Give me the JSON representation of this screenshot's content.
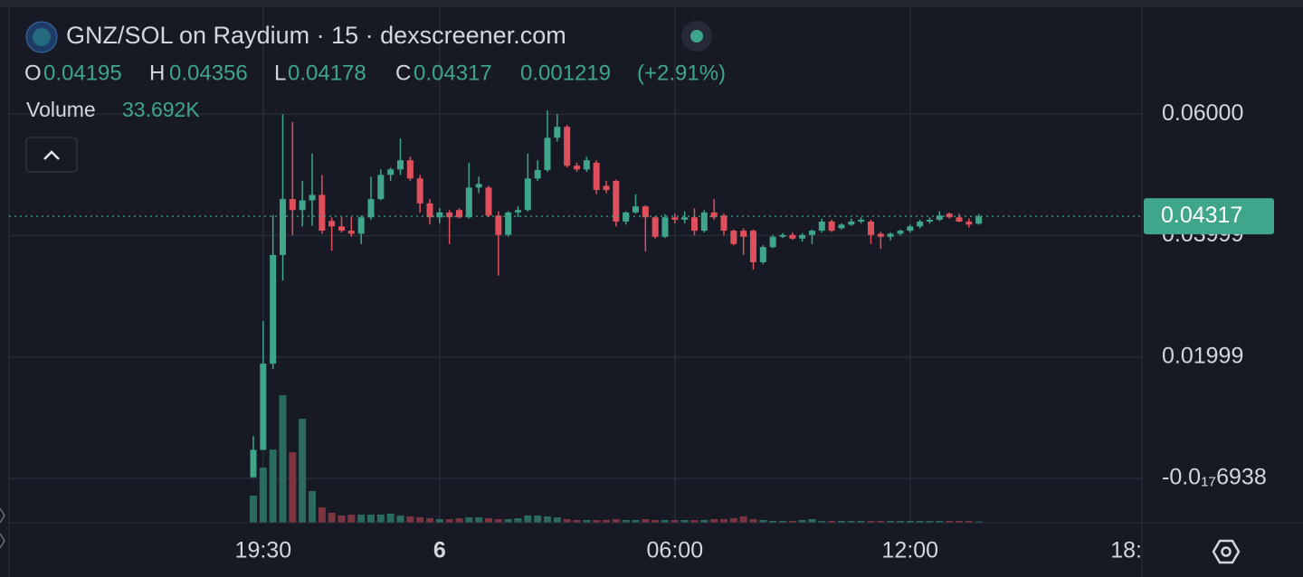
{
  "header": {
    "title": "GNZ/SOL on Raydium · 15 · dexscreener.com",
    "ohlc_labels": [
      "O",
      "H",
      "L",
      "C"
    ],
    "change": 0.001219,
    "change_percent": {
      "value": 2.91,
      "label": "(+2.91%)"
    }
  },
  "chart_data": {
    "type": "candlestick",
    "x": [
      "19:15",
      "19:30",
      "19:45",
      "20:00",
      "20:15",
      "20:30",
      "20:45",
      "21:00",
      "21:15",
      "21:30",
      "21:45",
      "22:00",
      "22:15",
      "22:30",
      "22:45",
      "23:00",
      "23:15",
      "23:30",
      "23:45",
      "00:00",
      "00:15",
      "00:30",
      "00:45",
      "01:00",
      "01:15",
      "01:30",
      "01:45",
      "02:00",
      "02:15",
      "02:30",
      "02:45",
      "03:00",
      "03:15",
      "03:30",
      "03:45",
      "04:00",
      "04:15",
      "04:30",
      "04:45",
      "05:00",
      "05:15",
      "05:30",
      "05:45",
      "06:00",
      "06:15",
      "06:30",
      "06:45",
      "07:00",
      "07:15",
      "07:30",
      "07:45",
      "08:00",
      "08:15",
      "08:30",
      "08:45",
      "09:00",
      "09:15",
      "09:30",
      "09:45",
      "10:00",
      "10:15",
      "10:30",
      "10:45",
      "11:00",
      "11:15",
      "11:30",
      "11:45",
      "12:00",
      "12:15",
      "12:30",
      "12:45",
      "13:00",
      "13:15",
      "13:30",
      "13:45"
    ],
    "open": [
      0.0002,
      0.0047,
      0.0189,
      0.0368,
      0.046,
      0.0442,
      0.0458,
      0.0467,
      0.0424,
      0.0415,
      0.0408,
      0.0403,
      0.043,
      0.046,
      0.05,
      0.0509,
      0.0524,
      0.0494,
      0.0453,
      0.043,
      0.0438,
      0.0442,
      0.043,
      0.0479,
      0.0479,
      0.0433,
      0.0401,
      0.0438,
      0.0442,
      0.0494,
      0.0508,
      0.0561,
      0.0579,
      0.0515,
      0.0509,
      0.052,
      0.0482,
      0.049,
      0.0423,
      0.0438,
      0.0448,
      0.043,
      0.0398,
      0.043,
      0.0426,
      0.043,
      0.0408,
      0.0438,
      0.0433,
      0.0408,
      0.0408,
      0.0408,
      0.0356,
      0.0381,
      0.0398,
      0.0401,
      0.0395,
      0.0401,
      0.0408,
      0.0423,
      0.0412,
      0.0418,
      0.0423,
      0.0423,
      0.0403,
      0.0398,
      0.0403,
      0.0408,
      0.0415,
      0.0423,
      0.0426,
      0.0436,
      0.043,
      0.0423,
      0.04195
    ],
    "high": [
      0.007,
      0.0259,
      0.0434,
      0.06,
      0.0587,
      0.049,
      0.0535,
      0.05,
      0.043,
      0.043,
      0.043,
      0.0433,
      0.0497,
      0.0509,
      0.0512,
      0.056,
      0.053,
      0.05,
      0.046,
      0.0445,
      0.0442,
      0.0445,
      0.052,
      0.0497,
      0.0482,
      0.044,
      0.044,
      0.0448,
      0.0535,
      0.0524,
      0.0606,
      0.06,
      0.0582,
      0.052,
      0.053,
      0.0524,
      0.049,
      0.0492,
      0.044,
      0.0468,
      0.045,
      0.0432,
      0.0435,
      0.0436,
      0.044,
      0.0445,
      0.0442,
      0.046,
      0.0436,
      0.041,
      0.0412,
      0.041,
      0.0384,
      0.0401,
      0.0404,
      0.0405,
      0.0404,
      0.041,
      0.0428,
      0.0426,
      0.042,
      0.0428,
      0.043,
      0.0426,
      0.0406,
      0.0405,
      0.041,
      0.0418,
      0.0426,
      0.043,
      0.044,
      0.0438,
      0.0436,
      0.0428,
      0.04356
    ],
    "low": [
      0.0001,
      0.0047,
      0.018,
      0.0326,
      0.04,
      0.0415,
      0.0416,
      0.0403,
      0.0375,
      0.0405,
      0.0398,
      0.0386,
      0.0426,
      0.0458,
      0.049,
      0.05,
      0.049,
      0.0438,
      0.0418,
      0.042,
      0.0386,
      0.0428,
      0.0428,
      0.047,
      0.043,
      0.0334,
      0.0398,
      0.043,
      0.044,
      0.049,
      0.0505,
      0.0555,
      0.0512,
      0.0505,
      0.0505,
      0.0468,
      0.047,
      0.0415,
      0.0418,
      0.0436,
      0.0374,
      0.0395,
      0.0396,
      0.042,
      0.042,
      0.04,
      0.0405,
      0.0426,
      0.04,
      0.0384,
      0.0368,
      0.0344,
      0.0353,
      0.0379,
      0.0396,
      0.0393,
      0.039,
      0.0386,
      0.0405,
      0.0406,
      0.041,
      0.0416,
      0.042,
      0.0386,
      0.0378,
      0.0392,
      0.04,
      0.0405,
      0.0412,
      0.042,
      0.0424,
      0.0428,
      0.0422,
      0.0413,
      0.04178
    ],
    "close": [
      0.0047,
      0.0189,
      0.0368,
      0.046,
      0.0442,
      0.0458,
      0.0467,
      0.0408,
      0.0415,
      0.0408,
      0.0403,
      0.043,
      0.046,
      0.05,
      0.0509,
      0.0524,
      0.0494,
      0.0453,
      0.043,
      0.0438,
      0.043,
      0.043,
      0.0479,
      0.0485,
      0.0433,
      0.0401,
      0.0438,
      0.0442,
      0.0494,
      0.0508,
      0.0561,
      0.0579,
      0.0515,
      0.0509,
      0.0524,
      0.0475,
      0.0475,
      0.0423,
      0.0438,
      0.0448,
      0.043,
      0.0398,
      0.043,
      0.0426,
      0.043,
      0.0408,
      0.0438,
      0.043,
      0.0408,
      0.0386,
      0.0398,
      0.0356,
      0.0381,
      0.0398,
      0.0401,
      0.0395,
      0.0401,
      0.0408,
      0.0423,
      0.0408,
      0.0418,
      0.0423,
      0.0426,
      0.0401,
      0.0398,
      0.0403,
      0.0408,
      0.0415,
      0.0423,
      0.0426,
      0.0433,
      0.043,
      0.0423,
      0.0418,
      0.04317
    ],
    "up_color": "#3fa58b",
    "down_color": "#e0505c",
    "volume": {
      "name": "Volume",
      "values": [
        750000,
        1525000,
        2025000,
        3525000,
        1950000,
        2875000,
        875000,
        425000,
        275000,
        200000,
        225000,
        225000,
        225000,
        225000,
        250000,
        200000,
        175000,
        150000,
        125000,
        100000,
        100000,
        125000,
        150000,
        150000,
        125000,
        100000,
        100000,
        125000,
        200000,
        200000,
        175000,
        150000,
        100000,
        75000,
        75000,
        75000,
        75000,
        100000,
        75000,
        75000,
        100000,
        75000,
        75000,
        75000,
        75000,
        75000,
        75000,
        100000,
        100000,
        125000,
        175000,
        100000,
        75000,
        50000,
        50000,
        50000,
        75000,
        100000,
        50000,
        50000,
        50000,
        50000,
        50000,
        50000,
        50000,
        50000,
        50000,
        50000,
        50000,
        50000,
        50000,
        50000,
        50000,
        50000,
        33692
      ],
      "value_labels": [
        null,
        null,
        null,
        null,
        null,
        null,
        null,
        null,
        null,
        null,
        null,
        null,
        null,
        null,
        null,
        null,
        null,
        null,
        null,
        null,
        null,
        null,
        null,
        null,
        null,
        null,
        null,
        null,
        null,
        null,
        null,
        null,
        null,
        null,
        null,
        null,
        null,
        null,
        null,
        null,
        null,
        null,
        null,
        null,
        null,
        null,
        null,
        null,
        null,
        null,
        null,
        null,
        null,
        null,
        null,
        null,
        null,
        null,
        null,
        null,
        null,
        null,
        null,
        null,
        null,
        null,
        null,
        null,
        null,
        null,
        null,
        null,
        null,
        null,
        "33.692K"
      ],
      "up_color": "#2b6a5e",
      "down_color": "#7c3440"
    },
    "ylim": [
      -0.0073,
      0.0776
    ],
    "yticks": [
      {
        "value": -6.938e-18,
        "label": "-0.0₁₇6938"
      },
      0.01999,
      0.03999,
      {
        "value": 0.06,
        "label": "0.06000"
      }
    ],
    "xticks": [
      "19:30",
      {
        "value": "00:00",
        "label": "6"
      },
      "06:00",
      "12:00",
      {
        "value": "18:00",
        "label": "18:"
      }
    ],
    "grid": true
  }
}
